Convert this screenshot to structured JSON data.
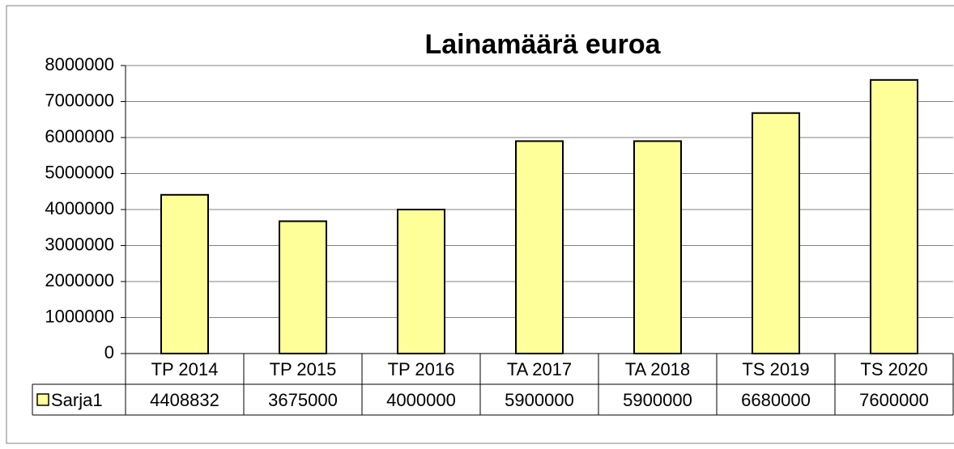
{
  "chart_data": {
    "type": "bar",
    "title": "Lainamäärä euroa",
    "categories": [
      "TP 2014",
      "TP 2015",
      "TP 2016",
      "TA 2017",
      "TA 2018",
      "TS 2019",
      "TS 2020"
    ],
    "series": [
      {
        "name": "Sarja1",
        "color": "#ffff99",
        "values": [
          4408832,
          3675000,
          4000000,
          5900000,
          5900000,
          6680000,
          7600000
        ]
      }
    ],
    "ylim": [
      0,
      8000000
    ],
    "yticks": [
      0,
      1000000,
      2000000,
      3000000,
      4000000,
      5000000,
      6000000,
      7000000,
      8000000
    ],
    "grid": true,
    "data_table": true
  }
}
